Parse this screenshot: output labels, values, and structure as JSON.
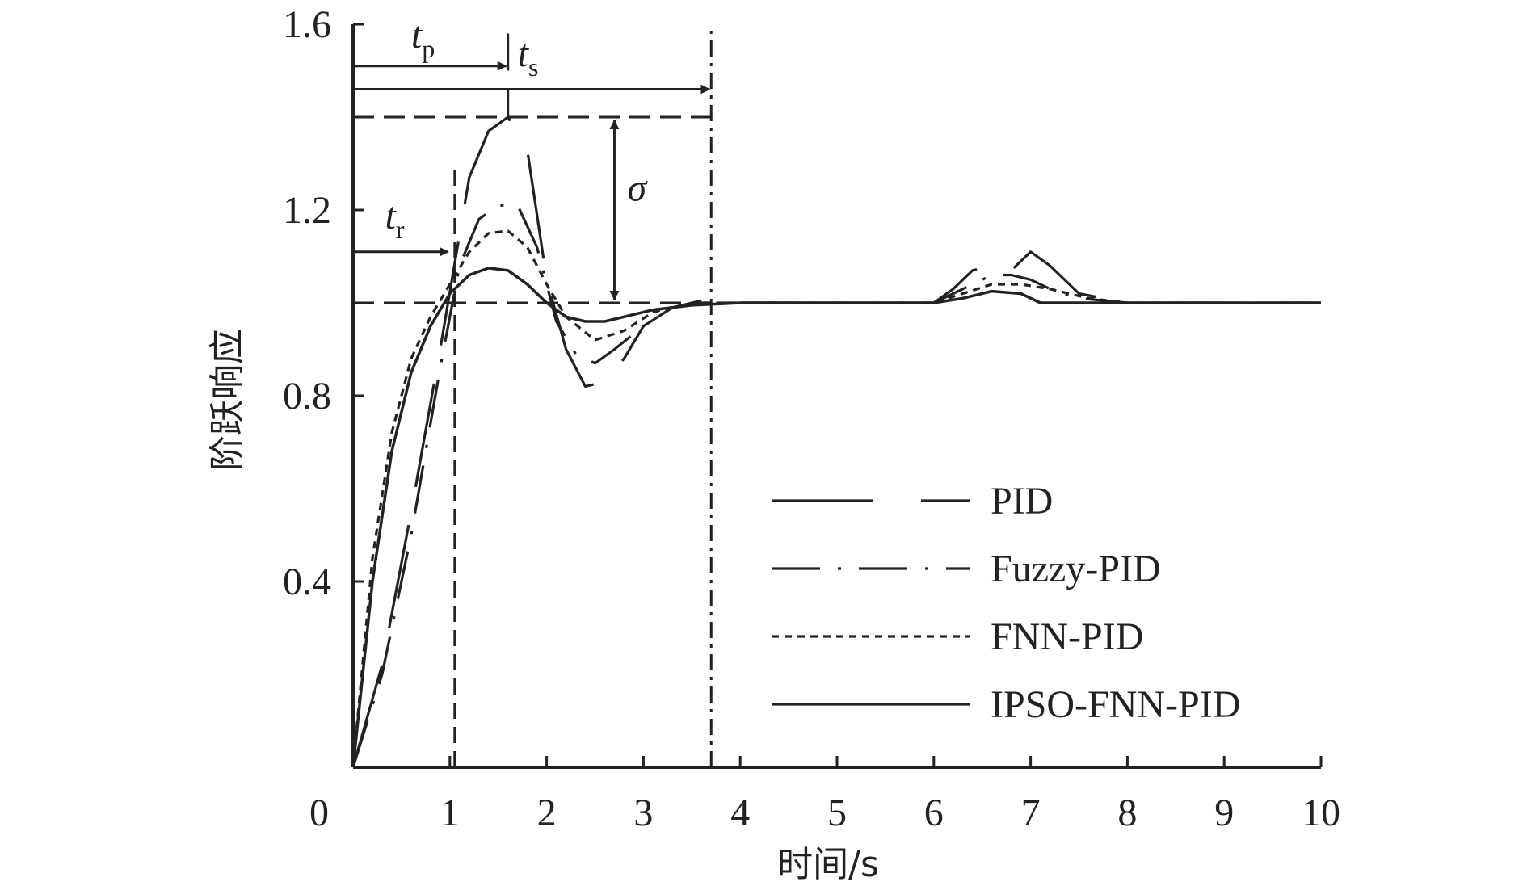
{
  "chart_data": {
    "type": "line",
    "xlabel": "时间/s",
    "ylabel": "阶跃响应",
    "xlim": [
      0,
      10
    ],
    "ylim": [
      0,
      1.6
    ],
    "x_ticks": [
      "0",
      "1",
      "2",
      "3",
      "4",
      "5",
      "6",
      "7",
      "8",
      "9",
      "10"
    ],
    "y_ticks": [
      "0.4",
      "0.8",
      "1.2",
      "1.6"
    ],
    "legend_position": "center-right",
    "grid": false,
    "line_color": "#222222",
    "series": [
      {
        "name": "PID",
        "dash": "long-dash",
        "x": [
          0,
          0.3,
          0.6,
          0.9,
          1.2,
          1.4,
          1.6,
          1.8,
          2.0,
          2.2,
          2.4,
          2.6,
          2.8,
          3.0,
          3.3,
          3.6,
          4.0,
          5.0,
          6.0,
          6.2,
          6.4,
          6.6,
          6.8,
          7.0,
          7.2,
          7.5,
          8.0,
          10.0
        ],
        "y": [
          0,
          0.22,
          0.55,
          0.9,
          1.27,
          1.37,
          1.4,
          1.33,
          1.05,
          0.9,
          0.82,
          0.83,
          0.88,
          0.95,
          0.99,
          1.005,
          1.0,
          1.0,
          1.0,
          1.03,
          1.07,
          1.08,
          1.07,
          1.11,
          1.08,
          1.02,
          1.0,
          1.0
        ]
      },
      {
        "name": "Fuzzy-PID",
        "dash": "dash-dot",
        "x": [
          0,
          0.3,
          0.6,
          0.9,
          1.1,
          1.3,
          1.5,
          1.7,
          1.9,
          2.1,
          2.3,
          2.5,
          2.7,
          3.0,
          3.3,
          3.6,
          4.0,
          5.0,
          6.0,
          6.3,
          6.6,
          6.8,
          7.0,
          7.2,
          7.5,
          8.0,
          10.0
        ],
        "y": [
          0,
          0.2,
          0.5,
          0.86,
          1.08,
          1.18,
          1.21,
          1.21,
          1.12,
          0.96,
          0.89,
          0.87,
          0.9,
          0.95,
          0.99,
          1.0,
          1.0,
          1.0,
          1.0,
          1.03,
          1.06,
          1.06,
          1.05,
          1.03,
          1.01,
          1.0,
          1.0
        ]
      },
      {
        "name": "FNN-PID",
        "dash": "short-dash",
        "x": [
          0,
          0.2,
          0.4,
          0.6,
          0.8,
          1.0,
          1.2,
          1.4,
          1.6,
          1.8,
          2.0,
          2.2,
          2.5,
          2.8,
          3.1,
          3.5,
          4.0,
          5.0,
          6.0,
          6.3,
          6.6,
          6.9,
          7.2,
          7.6,
          8.0,
          10.0
        ],
        "y": [
          0,
          0.45,
          0.72,
          0.88,
          0.97,
          1.04,
          1.11,
          1.15,
          1.155,
          1.12,
          1.04,
          0.97,
          0.92,
          0.94,
          0.98,
          1.0,
          1.0,
          1.0,
          1.0,
          1.02,
          1.04,
          1.04,
          1.03,
          1.01,
          1.0,
          1.0
        ]
      },
      {
        "name": "IPSO-FNN-PID",
        "dash": "solid",
        "x": [
          0,
          0.2,
          0.4,
          0.6,
          0.8,
          1.0,
          1.2,
          1.4,
          1.6,
          1.8,
          2.0,
          2.2,
          2.4,
          2.6,
          2.8,
          3.1,
          3.5,
          4.0,
          5.0,
          6.0,
          6.3,
          6.6,
          6.9,
          7.1,
          8.0,
          10.0
        ],
        "y": [
          0,
          0.4,
          0.68,
          0.85,
          0.95,
          1.02,
          1.06,
          1.075,
          1.07,
          1.04,
          1.0,
          0.97,
          0.96,
          0.96,
          0.97,
          0.985,
          0.995,
          1.0,
          1.0,
          1.0,
          1.01,
          1.025,
          1.02,
          1.0,
          1.0,
          1.0
        ]
      }
    ],
    "annotations": {
      "tp": {
        "label": "t",
        "sub": "p",
        "x_start": 0,
        "x_end": 1.6,
        "y": 1.51
      },
      "ts": {
        "label": "t",
        "sub": "s",
        "x_start": 0,
        "x_end": 3.7,
        "y": 1.46
      },
      "tr": {
        "label": "t",
        "sub": "r",
        "x_start": 0,
        "x_end": 1.0,
        "y": 1.11
      },
      "sigma": {
        "label": "σ",
        "x": 2.7,
        "y_low": 1.0,
        "y_high": 1.4
      },
      "overshoot_level": 1.4,
      "steady_level": 1.0,
      "vertical_marker_1": 1.05,
      "vertical_marker_2": 3.7
    }
  }
}
